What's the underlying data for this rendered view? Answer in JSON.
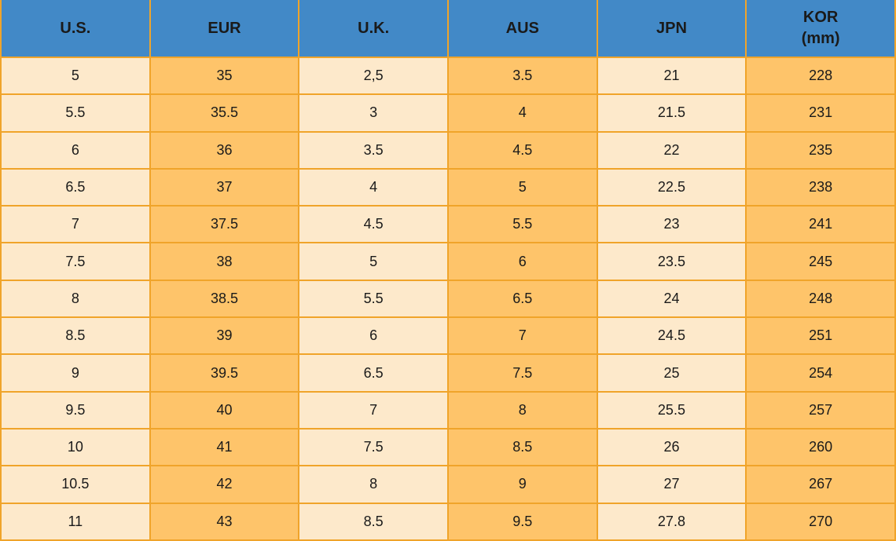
{
  "colors": {
    "header_bg": "#4289C7",
    "border": "#F0A42A",
    "cell_light": "#FDE9CB",
    "cell_dark": "#FEC46A",
    "text": "#1A1A1A"
  },
  "chart_data": {
    "type": "table",
    "title": "",
    "columns": [
      {
        "label": "U.S.",
        "sublabel": "",
        "shade": "light"
      },
      {
        "label": "EUR",
        "sublabel": "",
        "shade": "dark"
      },
      {
        "label": "U.K.",
        "sublabel": "",
        "shade": "light"
      },
      {
        "label": "AUS",
        "sublabel": "",
        "shade": "dark"
      },
      {
        "label": "JPN",
        "sublabel": "",
        "shade": "light"
      },
      {
        "label": "KOR",
        "sublabel": "(mm)",
        "shade": "dark"
      }
    ],
    "rows": [
      [
        "5",
        "35",
        "2,5",
        "3.5",
        "21",
        "228"
      ],
      [
        "5.5",
        "35.5",
        "3",
        "4",
        "21.5",
        "231"
      ],
      [
        "6",
        "36",
        "3.5",
        "4.5",
        "22",
        "235"
      ],
      [
        "6.5",
        "37",
        "4",
        "5",
        "22.5",
        "238"
      ],
      [
        "7",
        "37.5",
        "4.5",
        "5.5",
        "23",
        "241"
      ],
      [
        "7.5",
        "38",
        "5",
        "6",
        "23.5",
        "245"
      ],
      [
        "8",
        "38.5",
        "5.5",
        "6.5",
        "24",
        "248"
      ],
      [
        "8.5",
        "39",
        "6",
        "7",
        "24.5",
        "251"
      ],
      [
        "9",
        "39.5",
        "6.5",
        "7.5",
        "25",
        "254"
      ],
      [
        "9.5",
        "40",
        "7",
        "8",
        "25.5",
        "257"
      ],
      [
        "10",
        "41",
        "7.5",
        "8.5",
        "26",
        "260"
      ],
      [
        "10.5",
        "42",
        "8",
        "9",
        "27",
        "267"
      ],
      [
        "11",
        "43",
        "8.5",
        "9.5",
        "27.8",
        "270"
      ]
    ]
  }
}
